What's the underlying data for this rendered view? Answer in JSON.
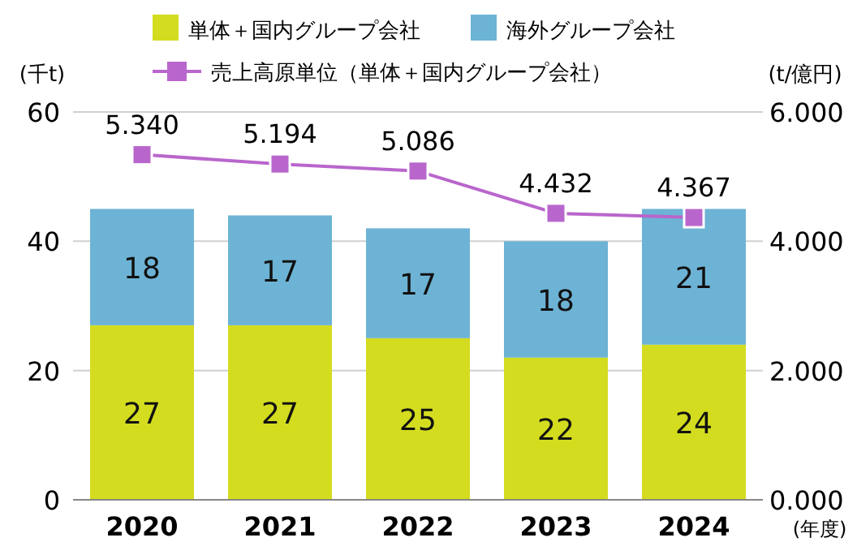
{
  "chart_data": {
    "type": "bar",
    "stacked": true,
    "categories": [
      "2020",
      "2021",
      "2022",
      "2023",
      "2024"
    ],
    "xlabel": "(年度)",
    "ylabel": "(千t)",
    "y2label": "(t/億円)",
    "series": [
      {
        "name": "単体＋国内グループ会社",
        "color": "#d3dc1f",
        "values": [
          27,
          27,
          25,
          22,
          24
        ],
        "value_labels": [
          "27",
          "27",
          "25",
          "22",
          "24"
        ]
      },
      {
        "name": "海外グループ会社",
        "color": "#6db3d5",
        "values": [
          18,
          17,
          17,
          18,
          21
        ],
        "value_labels": [
          "18",
          "17",
          "17",
          "18",
          "21"
        ]
      },
      {
        "name": "売上高原単位（単体＋国内グループ会社）",
        "type": "line",
        "axis": "y2",
        "color": "#b966cc",
        "marker": "square",
        "values": [
          5.34,
          5.194,
          5.086,
          4.432,
          4.367
        ],
        "value_labels": [
          "5.340",
          "5.194",
          "5.086",
          "4.432",
          "4.367"
        ]
      }
    ],
    "ylim": [
      0,
      60
    ],
    "yticks": [
      0,
      20,
      40,
      60
    ],
    "y2lim": [
      0,
      6
    ],
    "y2ticks": [
      {
        "value": 0,
        "label": "0.000"
      },
      {
        "value": 2,
        "label": "2.000"
      },
      {
        "value": 4,
        "label": "4.000"
      },
      {
        "value": 6,
        "label": "6.000"
      }
    ],
    "grid": "y",
    "legend": "top"
  }
}
